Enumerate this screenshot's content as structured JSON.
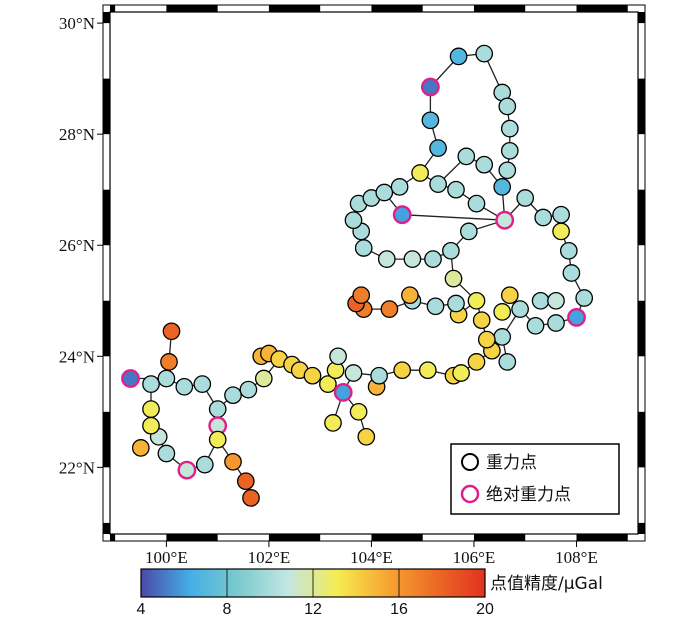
{
  "map": {
    "lat_labels": [
      {
        "lat": 30,
        "text": "30°N"
      },
      {
        "lat": 28,
        "text": "28°N"
      },
      {
        "lat": 26,
        "text": "26°N"
      },
      {
        "lat": 24,
        "text": "24°N"
      },
      {
        "lat": 22,
        "text": "22°N"
      }
    ],
    "lon_labels": [
      {
        "lon": 100,
        "text": "100°E"
      },
      {
        "lon": 102,
        "text": "102°E"
      },
      {
        "lon": 104,
        "text": "104°E"
      },
      {
        "lon": 106,
        "text": "106°E"
      },
      {
        "lon": 108,
        "text": "108°E"
      }
    ],
    "lon_range": [
      98.9,
      109.2
    ],
    "lat_range": [
      20.8,
      30.2
    ]
  },
  "legend": {
    "gravity_point": "重力点",
    "absolute_gravity_point": "绝对重力点",
    "gravity_point_color": "#000000",
    "absolute_gravity_point_color": "#e0208a"
  },
  "colorbar": {
    "title": "点值精度/μGal",
    "min": 4,
    "max": 20,
    "ticks": [
      "4",
      "8",
      "12",
      "16",
      "20"
    ],
    "colors": [
      "#4a4aa8",
      "#45aee6",
      "#7ccbcc",
      "#c4e6e4",
      "#f5ec50",
      "#f7a633",
      "#ec6a24",
      "#e23222"
    ]
  },
  "chart_data": {
    "type": "scatter",
    "stations": [
      {
        "lon": 99.3,
        "lat": 23.6,
        "v": 5,
        "abs": true
      },
      {
        "lon": 99.7,
        "lat": 23.5,
        "v": 10
      },
      {
        "lon": 100.0,
        "lat": 23.6,
        "v": 10
      },
      {
        "lon": 100.35,
        "lat": 23.45,
        "v": 10
      },
      {
        "lon": 100.7,
        "lat": 23.5,
        "v": 10
      },
      {
        "lon": 101.0,
        "lat": 23.05,
        "v": 10
      },
      {
        "lon": 101.0,
        "lat": 22.75,
        "v": 11,
        "abs": true
      },
      {
        "lon": 101.0,
        "lat": 22.5,
        "v": 13
      },
      {
        "lon": 100.75,
        "lat": 22.05,
        "v": 10
      },
      {
        "lon": 100.4,
        "lat": 21.95,
        "v": 11,
        "abs": true
      },
      {
        "lon": 100.0,
        "lat": 22.25,
        "v": 10
      },
      {
        "lon": 99.85,
        "lat": 22.55,
        "v": 11
      },
      {
        "lon": 99.7,
        "lat": 22.75,
        "v": 13
      },
      {
        "lon": 99.7,
        "lat": 23.05,
        "v": 13
      },
      {
        "lon": 99.5,
        "lat": 22.35,
        "v": 15
      },
      {
        "lon": 100.05,
        "lat": 23.9,
        "v": 17
      },
      {
        "lon": 100.1,
        "lat": 24.45,
        "v": 18
      },
      {
        "lon": 101.3,
        "lat": 22.1,
        "v": 16
      },
      {
        "lon": 101.55,
        "lat": 21.75,
        "v": 18
      },
      {
        "lon": 101.65,
        "lat": 21.45,
        "v": 18
      },
      {
        "lon": 101.3,
        "lat": 23.3,
        "v": 10
      },
      {
        "lon": 101.6,
        "lat": 23.4,
        "v": 10
      },
      {
        "lon": 101.9,
        "lat": 23.6,
        "v": 12
      },
      {
        "lon": 101.85,
        "lat": 24.0,
        "v": 15
      },
      {
        "lon": 102.0,
        "lat": 24.05,
        "v": 15
      },
      {
        "lon": 102.2,
        "lat": 23.95,
        "v": 14
      },
      {
        "lon": 102.45,
        "lat": 23.85,
        "v": 14
      },
      {
        "lon": 102.6,
        "lat": 23.75,
        "v": 14
      },
      {
        "lon": 102.85,
        "lat": 23.65,
        "v": 14
      },
      {
        "lon": 103.15,
        "lat": 23.5,
        "v": 13
      },
      {
        "lon": 103.3,
        "lat": 23.75,
        "v": 13
      },
      {
        "lon": 103.35,
        "lat": 24.0,
        "v": 11
      },
      {
        "lon": 103.45,
        "lat": 23.35,
        "v": 6,
        "abs": true
      },
      {
        "lon": 103.25,
        "lat": 22.8,
        "v": 13
      },
      {
        "lon": 103.75,
        "lat": 23.0,
        "v": 13
      },
      {
        "lon": 103.9,
        "lat": 22.55,
        "v": 14
      },
      {
        "lon": 104.1,
        "lat": 23.45,
        "v": 15
      },
      {
        "lon": 103.65,
        "lat": 23.7,
        "v": 11
      },
      {
        "lon": 104.15,
        "lat": 23.65,
        "v": 10
      },
      {
        "lon": 104.6,
        "lat": 23.75,
        "v": 14
      },
      {
        "lon": 105.1,
        "lat": 23.75,
        "v": 13
      },
      {
        "lon": 105.6,
        "lat": 23.65,
        "v": 14
      },
      {
        "lon": 105.75,
        "lat": 23.7,
        "v": 13
      },
      {
        "lon": 106.05,
        "lat": 23.9,
        "v": 14
      },
      {
        "lon": 106.35,
        "lat": 24.1,
        "v": 14
      },
      {
        "lon": 106.55,
        "lat": 24.35,
        "v": 10
      },
      {
        "lon": 106.65,
        "lat": 23.9,
        "v": 10
      },
      {
        "lon": 106.25,
        "lat": 24.3,
        "v": 14
      },
      {
        "lon": 106.15,
        "lat": 24.65,
        "v": 14
      },
      {
        "lon": 106.05,
        "lat": 25.0,
        "v": 13
      },
      {
        "lon": 105.7,
        "lat": 24.75,
        "v": 14
      },
      {
        "lon": 105.65,
        "lat": 24.95,
        "v": 10
      },
      {
        "lon": 105.25,
        "lat": 24.9,
        "v": 10
      },
      {
        "lon": 104.8,
        "lat": 25.0,
        "v": 10
      },
      {
        "lon": 104.75,
        "lat": 25.1,
        "v": 15
      },
      {
        "lon": 104.35,
        "lat": 24.85,
        "v": 17
      },
      {
        "lon": 103.85,
        "lat": 24.85,
        "v": 17
      },
      {
        "lon": 103.7,
        "lat": 24.95,
        "v": 18
      },
      {
        "lon": 103.8,
        "lat": 25.1,
        "v": 17
      },
      {
        "lon": 105.6,
        "lat": 25.4,
        "v": 12
      },
      {
        "lon": 105.55,
        "lat": 25.9,
        "v": 10
      },
      {
        "lon": 105.2,
        "lat": 25.75,
        "v": 10
      },
      {
        "lon": 104.8,
        "lat": 25.75,
        "v": 11
      },
      {
        "lon": 104.3,
        "lat": 25.75,
        "v": 11
      },
      {
        "lon": 103.85,
        "lat": 25.95,
        "v": 10
      },
      {
        "lon": 103.8,
        "lat": 26.25,
        "v": 10
      },
      {
        "lon": 103.65,
        "lat": 26.45,
        "v": 10
      },
      {
        "lon": 103.75,
        "lat": 26.75,
        "v": 10
      },
      {
        "lon": 104.0,
        "lat": 26.85,
        "v": 10
      },
      {
        "lon": 104.25,
        "lat": 26.95,
        "v": 10
      },
      {
        "lon": 104.55,
        "lat": 27.05,
        "v": 10
      },
      {
        "lon": 104.6,
        "lat": 26.55,
        "v": 6,
        "abs": true
      },
      {
        "lon": 104.95,
        "lat": 27.3,
        "v": 13
      },
      {
        "lon": 105.3,
        "lat": 27.1,
        "v": 10
      },
      {
        "lon": 105.65,
        "lat": 27.0,
        "v": 10
      },
      {
        "lon": 106.05,
        "lat": 26.75,
        "v": 10
      },
      {
        "lon": 105.9,
        "lat": 26.25,
        "v": 10
      },
      {
        "lon": 106.6,
        "lat": 26.45,
        "v": 11,
        "abs": true
      },
      {
        "lon": 107.0,
        "lat": 26.85,
        "v": 10
      },
      {
        "lon": 107.35,
        "lat": 26.5,
        "v": 10
      },
      {
        "lon": 107.7,
        "lat": 26.55,
        "v": 10
      },
      {
        "lon": 107.7,
        "lat": 26.25,
        "v": 13
      },
      {
        "lon": 107.85,
        "lat": 25.9,
        "v": 10
      },
      {
        "lon": 107.9,
        "lat": 25.5,
        "v": 10
      },
      {
        "lon": 108.15,
        "lat": 25.05,
        "v": 10
      },
      {
        "lon": 108.0,
        "lat": 24.7,
        "v": 6,
        "abs": true
      },
      {
        "lon": 107.6,
        "lat": 24.6,
        "v": 10
      },
      {
        "lon": 107.2,
        "lat": 24.55,
        "v": 10
      },
      {
        "lon": 106.9,
        "lat": 24.85,
        "v": 10
      },
      {
        "lon": 106.7,
        "lat": 25.1,
        "v": 14
      },
      {
        "lon": 106.55,
        "lat": 24.8,
        "v": 13
      },
      {
        "lon": 107.3,
        "lat": 25.0,
        "v": 10
      },
      {
        "lon": 107.6,
        "lat": 25.0,
        "v": 11
      },
      {
        "lon": 105.15,
        "lat": 28.85,
        "v": 5,
        "abs": true
      },
      {
        "lon": 105.15,
        "lat": 28.25,
        "v": 7
      },
      {
        "lon": 105.3,
        "lat": 27.75,
        "v": 7
      },
      {
        "lon": 105.7,
        "lat": 29.4,
        "v": 7
      },
      {
        "lon": 106.2,
        "lat": 29.45,
        "v": 10
      },
      {
        "lon": 106.55,
        "lat": 28.75,
        "v": 10
      },
      {
        "lon": 106.65,
        "lat": 28.5,
        "v": 10
      },
      {
        "lon": 106.7,
        "lat": 28.1,
        "v": 10
      },
      {
        "lon": 106.7,
        "lat": 27.7,
        "v": 10
      },
      {
        "lon": 106.65,
        "lat": 27.35,
        "v": 10
      },
      {
        "lon": 106.55,
        "lat": 27.05,
        "v": 7
      },
      {
        "lon": 106.2,
        "lat": 27.45,
        "v": 10
      },
      {
        "lon": 105.85,
        "lat": 27.6,
        "v": 10
      }
    ],
    "routes": [
      [
        [
          99.3,
          23.6
        ],
        [
          100.0,
          23.6
        ],
        [
          100.35,
          23.45
        ],
        [
          100.7,
          23.5
        ],
        [
          101.0,
          23.05
        ],
        [
          101.0,
          22.75
        ],
        [
          101.0,
          22.5
        ],
        [
          100.75,
          22.05
        ],
        [
          100.4,
          21.95
        ],
        [
          100.0,
          22.25
        ],
        [
          99.85,
          22.55
        ],
        [
          99.7,
          23.05
        ],
        [
          99.7,
          23.5
        ]
      ],
      [
        [
          100.05,
          23.9
        ],
        [
          100.1,
          24.45
        ]
      ],
      [
        [
          100.0,
          23.6
        ],
        [
          100.05,
          23.9
        ]
      ],
      [
        [
          101.0,
          22.5
        ],
        [
          101.3,
          22.1
        ],
        [
          101.55,
          21.75
        ],
        [
          101.65,
          21.45
        ]
      ],
      [
        [
          101.0,
          23.05
        ],
        [
          101.3,
          23.3
        ],
        [
          101.6,
          23.4
        ],
        [
          101.9,
          23.6
        ],
        [
          102.2,
          23.95
        ],
        [
          102.45,
          23.85
        ],
        [
          102.85,
          23.65
        ],
        [
          103.15,
          23.5
        ],
        [
          103.45,
          23.35
        ],
        [
          103.65,
          23.7
        ],
        [
          104.15,
          23.65
        ],
        [
          104.6,
          23.75
        ],
        [
          105.1,
          23.75
        ],
        [
          105.6,
          23.65
        ],
        [
          105.75,
          23.7
        ],
        [
          106.05,
          23.9
        ],
        [
          106.35,
          24.1
        ],
        [
          106.55,
          24.35
        ],
        [
          106.65,
          23.9
        ]
      ],
      [
        [
          103.45,
          23.35
        ],
        [
          103.25,
          22.8
        ]
      ],
      [
        [
          103.45,
          23.35
        ],
        [
          103.75,
          23.0
        ],
        [
          103.9,
          22.55
        ]
      ],
      [
        [
          103.3,
          23.75
        ],
        [
          103.35,
          24.0
        ]
      ],
      [
        [
          106.55,
          24.35
        ],
        [
          106.25,
          24.3
        ],
        [
          106.15,
          24.65
        ],
        [
          106.05,
          25.0
        ],
        [
          105.7,
          24.75
        ],
        [
          105.65,
          24.95
        ],
        [
          105.25,
          24.9
        ],
        [
          104.8,
          25.0
        ],
        [
          104.35,
          24.85
        ],
        [
          103.85,
          24.85
        ]
      ],
      [
        [
          106.05,
          25.0
        ],
        [
          105.6,
          25.4
        ],
        [
          105.55,
          25.9
        ],
        [
          105.2,
          25.75
        ],
        [
          104.8,
          25.75
        ],
        [
          104.3,
          25.75
        ],
        [
          103.85,
          25.95
        ],
        [
          103.8,
          26.25
        ],
        [
          103.65,
          26.45
        ],
        [
          103.75,
          26.75
        ],
        [
          104.0,
          26.85
        ],
        [
          104.25,
          26.95
        ],
        [
          104.55,
          27.05
        ],
        [
          104.95,
          27.3
        ],
        [
          105.3,
          27.1
        ],
        [
          105.65,
          27.0
        ],
        [
          106.05,
          26.75
        ],
        [
          106.6,
          26.45
        ]
      ],
      [
        [
          105.55,
          25.9
        ],
        [
          105.9,
          26.25
        ],
        [
          106.6,
          26.45
        ]
      ],
      [
        [
          104.6,
          26.55
        ],
        [
          106.6,
          26.45
        ],
        [
          107.0,
          26.85
        ],
        [
          107.35,
          26.5
        ],
        [
          107.7,
          26.55
        ],
        [
          107.7,
          26.25
        ],
        [
          107.85,
          25.9
        ],
        [
          107.9,
          25.5
        ],
        [
          108.15,
          25.05
        ],
        [
          108.0,
          24.7
        ],
        [
          107.6,
          24.6
        ],
        [
          107.2,
          24.55
        ],
        [
          106.9,
          24.85
        ],
        [
          106.55,
          24.35
        ]
      ],
      [
        [
          106.6,
          26.45
        ],
        [
          106.55,
          27.05
        ],
        [
          106.65,
          27.35
        ],
        [
          106.7,
          27.7
        ],
        [
          106.7,
          28.1
        ],
        [
          106.65,
          28.5
        ],
        [
          106.55,
          28.75
        ],
        [
          106.2,
          29.45
        ],
        [
          105.7,
          29.4
        ],
        [
          105.15,
          28.85
        ],
        [
          105.15,
          28.25
        ],
        [
          105.3,
          27.75
        ],
        [
          104.95,
          27.3
        ]
      ],
      [
        [
          105.3,
          27.1
        ],
        [
          105.85,
          27.6
        ],
        [
          106.2,
          27.45
        ],
        [
          106.55,
          27.05
        ]
      ],
      [
        [
          104.6,
          26.55
        ],
        [
          104.25,
          26.95
        ]
      ]
    ]
  }
}
